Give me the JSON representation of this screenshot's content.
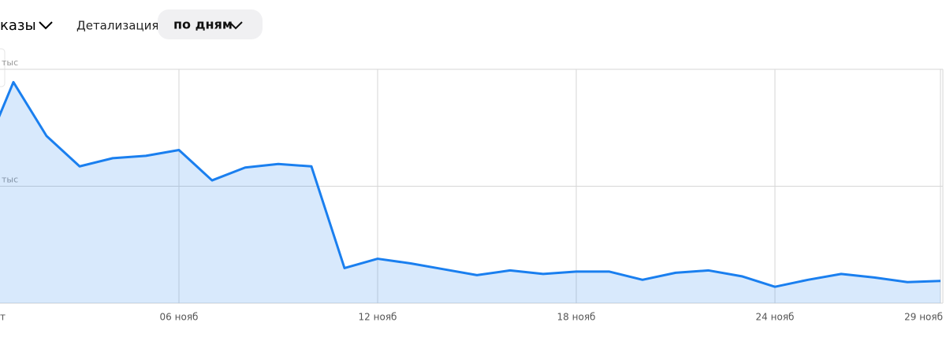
{
  "controls": {
    "metric": "казы",
    "detail_label": "Детализация",
    "detail_value": "по дням"
  },
  "chart_data": {
    "type": "area",
    "categories": [
      "т",
      null,
      null,
      null,
      null,
      null,
      "06 нояб",
      null,
      null,
      null,
      null,
      null,
      "12 нояб",
      null,
      null,
      null,
      null,
      null,
      "18 нояб",
      null,
      null,
      null,
      null,
      null,
      "24 нояб",
      null,
      null,
      null,
      null,
      "29 нояб"
    ],
    "series": [
      {
        "name": "Заказы",
        "color": "#1a7fef",
        "values": [
          1.21,
          1.89,
          1.43,
          1.17,
          1.24,
          1.26,
          1.31,
          1.05,
          1.16,
          1.19,
          1.17,
          0.3,
          0.38,
          0.34,
          0.29,
          0.24,
          0.28,
          0.25,
          0.27,
          0.27,
          0.2,
          0.26,
          0.28,
          0.23,
          0.14,
          0.2,
          0.25,
          0.22,
          0.18,
          0.19
        ]
      }
    ],
    "ylim": [
      0,
      2
    ],
    "yticks": [
      {
        "value": 1,
        "label": "тыс"
      },
      {
        "value": 2,
        "label": "тыс"
      }
    ],
    "grid": true
  }
}
